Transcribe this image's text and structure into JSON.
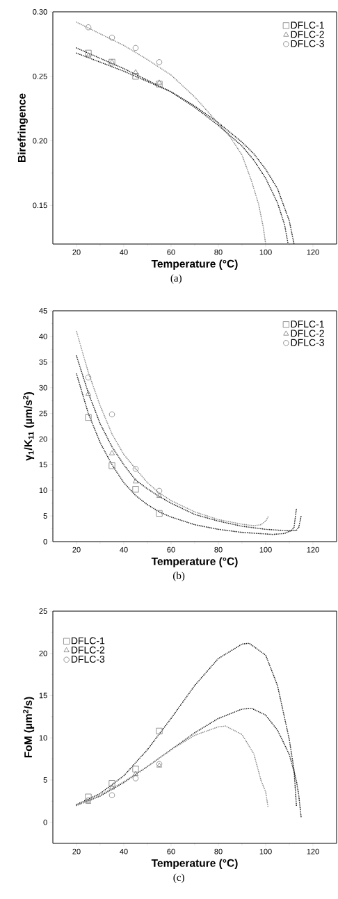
{
  "chart_data": [
    {
      "type": "scatter",
      "xlabel": "Temperature (°C)",
      "ylabel": "Birefringence",
      "xlim": [
        10,
        130
      ],
      "xticks": [
        20,
        40,
        60,
        80,
        100,
        120
      ],
      "ylim": [
        0.12,
        0.3
      ],
      "yticks": [
        {
          "value": 0.15,
          "label": "0.15"
        },
        {
          "value": 0.2,
          "label": "0.20"
        },
        {
          "value": 0.25,
          "label": "0.25"
        },
        {
          "value": 0.3,
          "label": "0.30"
        }
      ],
      "legend": "top right",
      "annotations": [
        "(a)"
      ],
      "series": [
        {
          "name": "DFLC-1",
          "marker": "square",
          "color": "#7a7a7a",
          "x": [
            25,
            35,
            45,
            55
          ],
          "values": [
            0.268,
            0.261,
            0.25,
            0.244
          ]
        },
        {
          "name": "DFLC-2",
          "marker": "triangle",
          "color": "#7a7a7a",
          "x": [
            25,
            35,
            45,
            55
          ],
          "values": [
            0.266,
            0.261,
            0.253,
            0.245
          ]
        },
        {
          "name": "DFLC-3",
          "marker": "circle",
          "color": "#7a7a7a",
          "x": [
            25,
            35,
            45,
            55
          ],
          "values": [
            0.288,
            0.28,
            0.272,
            0.261
          ]
        },
        {
          "type": "line",
          "marker": "none",
          "line_style": "dotted",
          "color": "#222222",
          "x": [
            20,
            30,
            40,
            50,
            60,
            70,
            80,
            90,
            95,
            100,
            105,
            108,
            109.5
          ],
          "values": [
            0.272,
            0.264,
            0.256,
            0.247,
            0.238,
            0.226,
            0.212,
            0.196,
            0.185,
            0.171,
            0.152,
            0.135,
            0.12
          ]
        },
        {
          "type": "line",
          "marker": "none",
          "line_style": "dotted",
          "color": "#222222",
          "x": [
            20,
            30,
            40,
            50,
            60,
            70,
            80,
            90,
            95,
            100,
            105,
            110,
            112
          ],
          "values": [
            0.268,
            0.261,
            0.254,
            0.246,
            0.238,
            0.227,
            0.214,
            0.199,
            0.19,
            0.178,
            0.163,
            0.138,
            0.12
          ]
        },
        {
          "type": "line",
          "marker": "none",
          "line_style": "dotted",
          "color": "#8a8a8a",
          "x": [
            20,
            30,
            40,
            50,
            60,
            70,
            80,
            85,
            90,
            94,
            97,
            99,
            100
          ],
          "values": [
            0.292,
            0.283,
            0.274,
            0.263,
            0.251,
            0.234,
            0.2135,
            0.203,
            0.189,
            0.169,
            0.151,
            0.133,
            0.12
          ]
        }
      ]
    },
    {
      "type": "scatter",
      "xlabel": "Temperature (°C)",
      "ylabel": "γ$_{1}$/K$_{11}$ (µm/s$^{2}$)",
      "xlim": [
        10,
        130
      ],
      "xticks": [
        20,
        40,
        60,
        80,
        100,
        120
      ],
      "ylim": [
        0,
        45
      ],
      "yticks": [
        0,
        5,
        10,
        15,
        20,
        25,
        30,
        35,
        40,
        45
      ],
      "legend": "top right",
      "annotations": [
        "(b)"
      ],
      "series": [
        {
          "name": "DFLC-1",
          "marker": "square",
          "color": "#7a7a7a",
          "x": [
            25,
            35,
            45,
            55
          ],
          "values": [
            24.2,
            14.8,
            10.2,
            5.5
          ]
        },
        {
          "name": "DFLC-2",
          "marker": "triangle",
          "color": "#7a7a7a",
          "x": [
            25,
            35,
            45,
            55
          ],
          "values": [
            28.8,
            17.2,
            11.7,
            8.9
          ]
        },
        {
          "name": "DFLC-3",
          "marker": "circle",
          "color": "#7a7a7a",
          "x": [
            25,
            35,
            45,
            55
          ],
          "values": [
            32.0,
            24.8,
            14.2,
            9.9
          ]
        },
        {
          "type": "line",
          "marker": "none",
          "line_style": "dotted",
          "color": "#222222",
          "x": [
            20,
            25,
            30,
            35,
            40,
            45,
            50,
            55,
            60,
            70,
            80,
            90,
            100,
            103,
            108,
            111,
            112,
            113
          ],
          "values": [
            32.7,
            25,
            19.3,
            15,
            11.5,
            9,
            7.2,
            5.8,
            4.8,
            3.3,
            2.4,
            1.8,
            1.5,
            1.4,
            1.6,
            2.2,
            2.8,
            6.4
          ]
        },
        {
          "type": "line",
          "marker": "none",
          "line_style": "dotted",
          "color": "#222222",
          "x": [
            20,
            25,
            30,
            35,
            40,
            45,
            50,
            55,
            60,
            70,
            80,
            90,
            100,
            110,
            113,
            114,
            115
          ],
          "values": [
            36.2,
            29,
            23,
            18.5,
            15,
            12,
            10.3,
            8.8,
            7.5,
            5.3,
            4,
            3,
            2.4,
            2.1,
            2.2,
            2.8,
            5.0
          ]
        },
        {
          "type": "line",
          "marker": "none",
          "line_style": "dotted",
          "color": "#8a8a8a",
          "x": [
            20,
            25,
            30,
            35,
            40,
            45,
            50,
            55,
            60,
            70,
            80,
            90,
            95,
            98,
            100,
            101
          ],
          "values": [
            41,
            33,
            26.5,
            21,
            17,
            14.2,
            11.5,
            9.5,
            8,
            5.8,
            4.3,
            3.4,
            3.1,
            3.3,
            4.0,
            4.8
          ]
        }
      ]
    },
    {
      "type": "scatter",
      "xlabel": "Temperature (°C)",
      "ylabel": "FoM (µm$^{2}$/s)",
      "xlim": [
        10,
        130
      ],
      "xticks": [
        20,
        40,
        60,
        80,
        100,
        120
      ],
      "ylim": [
        -2.5,
        25
      ],
      "yticks": [
        0,
        5,
        10,
        15,
        20,
        25
      ],
      "legend": "top left",
      "annotations": [
        "(c)"
      ],
      "series": [
        {
          "name": "DFLC-1",
          "marker": "square",
          "color": "#7a7a7a",
          "x": [
            25,
            35,
            45,
            55
          ],
          "values": [
            3.0,
            4.6,
            6.3,
            10.8
          ]
        },
        {
          "name": "DFLC-2",
          "marker": "triangle",
          "color": "#7a7a7a",
          "x": [
            25,
            35,
            45,
            55
          ],
          "values": [
            2.4,
            4.1,
            5.7,
            6.7
          ]
        },
        {
          "name": "DFLC-3",
          "marker": "circle",
          "color": "#7a7a7a",
          "x": [
            25,
            35,
            45,
            55
          ],
          "values": [
            2.6,
            3.2,
            5.2,
            6.9
          ]
        },
        {
          "type": "line",
          "marker": "none",
          "line_style": "dotted",
          "color": "#222222",
          "x": [
            20,
            30,
            40,
            50,
            60,
            70,
            80,
            90,
            93,
            100,
            105,
            107.5,
            110,
            112,
            113
          ],
          "values": [
            2.1,
            3.4,
            5.5,
            8.6,
            12.3,
            16.2,
            19.4,
            21.1,
            21.2,
            19.8,
            16.2,
            13,
            9.8,
            6.2,
            2.0
          ]
        },
        {
          "type": "line",
          "marker": "none",
          "line_style": "dotted",
          "color": "#222222",
          "x": [
            20,
            30,
            40,
            50,
            60,
            70,
            80,
            90,
            94,
            100,
            105,
            108,
            110,
            112,
            113,
            114,
            115
          ],
          "values": [
            2.0,
            3.1,
            4.7,
            6.6,
            8.6,
            10.6,
            12.3,
            13.4,
            13.5,
            12.7,
            10.9,
            9.2,
            8.0,
            6.0,
            4.9,
            3.2,
            0.6
          ]
        },
        {
          "type": "line",
          "marker": "none",
          "line_style": "dotted",
          "color": "#8a8a8a",
          "x": [
            20,
            30,
            40,
            50,
            60,
            70,
            80,
            83,
            90,
            95,
            98,
            100,
            101
          ],
          "values": [
            2.0,
            3.2,
            4.8,
            6.6,
            8.6,
            10.3,
            11.3,
            11.4,
            10.4,
            8.1,
            5.0,
            3.6,
            1.8
          ]
        }
      ]
    }
  ]
}
